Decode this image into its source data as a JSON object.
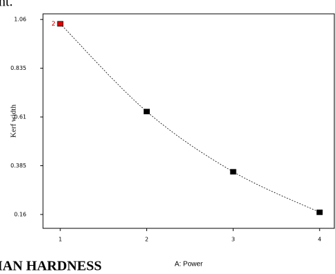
{
  "page_text": {
    "top": "nt.",
    "bottom": "IAN HARDNESS"
  },
  "chart_data": {
    "type": "line",
    "x_label": "A: Power",
    "y_label": "Kerf width",
    "x": [
      1,
      2,
      3,
      4
    ],
    "series": [
      {
        "values": [
          1.04,
          0.635,
          0.357,
          0.17
        ],
        "color": "#000000",
        "point_colors": [
          "#e00000",
          "#000000",
          "#000000",
          "#000000"
        ],
        "point_labels": [
          "2",
          null,
          null,
          null
        ]
      }
    ],
    "xlim": [
      0.8,
      4.17
    ],
    "ylim": [
      0.096,
      1.086
    ],
    "xticks": [
      1,
      2,
      3,
      4
    ],
    "yticks": [
      {
        "value": 0.16,
        "label": "0.16"
      },
      0.385,
      {
        "value": 0.61,
        "label": "0.61"
      },
      0.835,
      1.06
    ],
    "grid": false,
    "line_style": "dashed"
  }
}
